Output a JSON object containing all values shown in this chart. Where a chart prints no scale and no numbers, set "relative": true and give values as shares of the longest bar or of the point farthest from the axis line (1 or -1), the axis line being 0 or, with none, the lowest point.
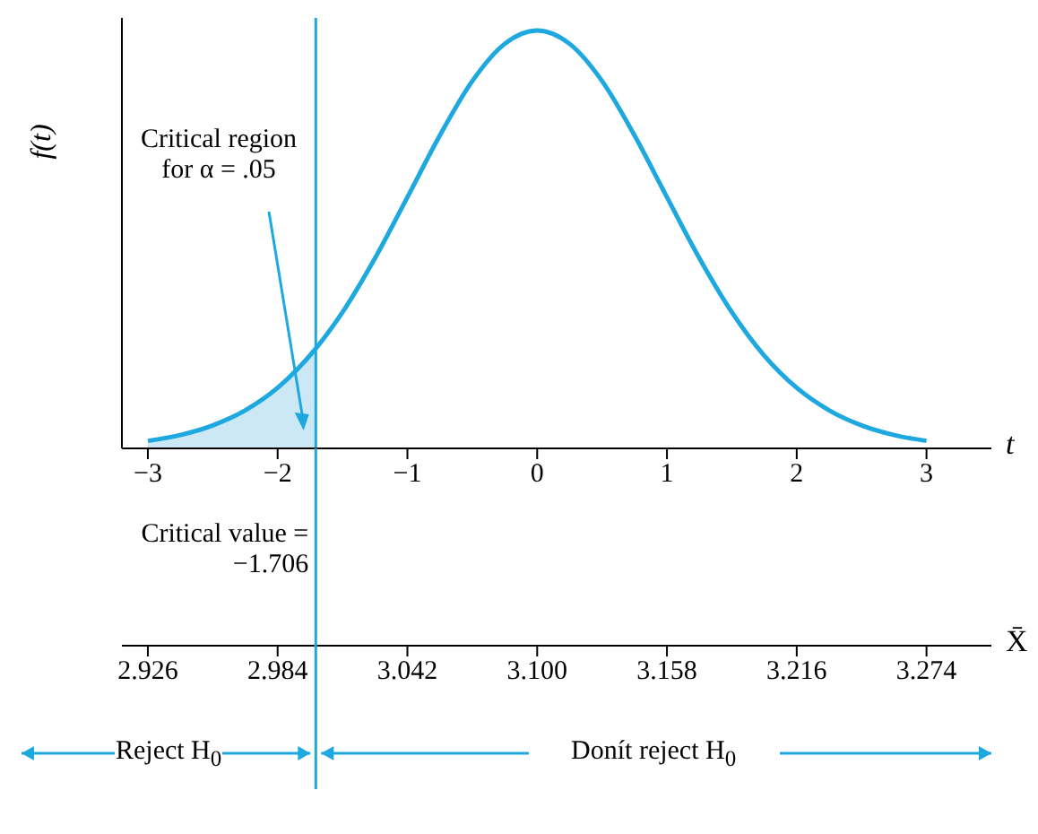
{
  "chart_data": {
    "type": "line",
    "relative": true,
    "xlabel": "t",
    "ylabel": "f(t)",
    "x2label": "X̄",
    "xlim": [
      -3.2,
      3.5
    ],
    "xticks": [
      {
        "value": -3,
        "label": "−3"
      },
      {
        "value": -2,
        "label": "−2"
      },
      {
        "value": -1,
        "label": "−1"
      },
      0,
      1,
      2,
      3
    ],
    "x2lim": [
      2.9144,
      3.303
    ],
    "x2ticks": [
      {
        "value": 2.926,
        "label": "2.926"
      },
      {
        "value": 2.984,
        "label": "2.984"
      },
      {
        "value": 3.042,
        "label": "3.042"
      },
      {
        "value": 3.1,
        "label": "3.100"
      },
      {
        "value": 3.158,
        "label": "3.158"
      },
      {
        "value": 3.216,
        "label": "3.216"
      },
      {
        "value": 3.274,
        "label": "3.274"
      }
    ],
    "marker": "none",
    "line_style": "solid",
    "series": [
      {
        "type": "area",
        "color": "#cde8f5",
        "x": [
          -3,
          -2.75,
          -2.5,
          -2.25,
          -2,
          -1.706
        ],
        "values": [
          0.018,
          0.032,
          0.055,
          0.091,
          0.145,
          0.239
        ]
      },
      {
        "color": "#1ea8e0",
        "x": [
          -3,
          -2.75,
          -2.5,
          -2.25,
          -2,
          -1.706,
          -1.5,
          -1.25,
          -1,
          -0.75,
          -0.5,
          -0.25,
          0,
          0.25,
          0.5,
          0.75,
          1,
          1.25,
          1.5,
          1.75,
          2,
          2.25,
          2.5,
          2.75,
          3
        ],
        "values": [
          0.018,
          0.032,
          0.055,
          0.091,
          0.145,
          0.239,
          0.326,
          0.455,
          0.601,
          0.749,
          0.879,
          0.968,
          1,
          0.968,
          0.879,
          0.749,
          0.601,
          0.455,
          0.326,
          0.222,
          0.145,
          0.091,
          0.055,
          0.032,
          0.018
        ]
      }
    ],
    "ref_lines": [
      {
        "axis": "x",
        "value": -1.706,
        "label": "Critical value = −1.706",
        "color": "#1ea8e0"
      }
    ],
    "annotations": [
      "Critical region for α = .05",
      "Reject H$_{0}$",
      "Donít reject H$_{0}$"
    ]
  }
}
